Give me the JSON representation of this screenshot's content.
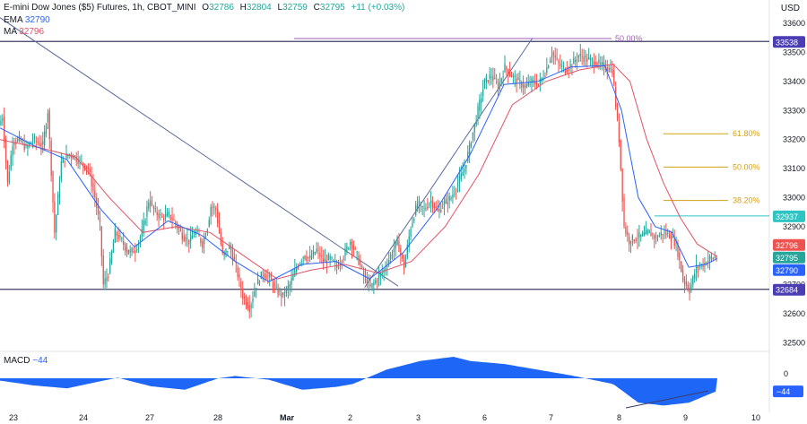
{
  "header": {
    "title": "E-mini Dow Jones ($5) Futures, 1h, CBOT_MINI",
    "o_label": "O",
    "o_value": "32786",
    "h_label": "H",
    "h_value": "32804",
    "l_label": "L",
    "l_value": "32759",
    "c_label": "C",
    "c_value": "32795",
    "change": "+11 (+0.03%)",
    "ema_label": "EMA",
    "ema_value": "32790",
    "ma_label": "MA",
    "ma_value": "32796"
  },
  "colors": {
    "up": "#26a69a",
    "down": "#ef5350",
    "ema": "#2962ff",
    "ma": "#e05365",
    "macd_fill": "#1e66f5",
    "horizontal": "#3d3d63",
    "fib": "#d4a017",
    "fib50_top": "#a15db8",
    "teal_line": "#2ec4c4"
  },
  "chart_data": {
    "type": "line",
    "title": "E-mini Dow Jones ($5) Futures, 1h, CBOT_MINI",
    "y_axis_title": "USD",
    "ylim": [
      32470,
      33650
    ],
    "y_ticks": [
      32500,
      32600,
      32700,
      32800,
      32900,
      33000,
      33100,
      33200,
      33300,
      33400,
      33500,
      33600
    ],
    "x_ticks": [
      "23",
      "24",
      "27",
      "28",
      "Mar",
      "2",
      "3",
      "6",
      "7",
      "8",
      "9",
      "10"
    ],
    "price_path": [
      [
        0,
        33250
      ],
      [
        2,
        33280
      ],
      [
        5,
        33050
      ],
      [
        8,
        33190
      ],
      [
        12,
        33200
      ],
      [
        16,
        33170
      ],
      [
        20,
        33200
      ],
      [
        26,
        33180
      ],
      [
        29,
        33300
      ],
      [
        33,
        32880
      ],
      [
        37,
        33120
      ],
      [
        41,
        33150
      ],
      [
        45,
        33140
      ],
      [
        49,
        33120
      ],
      [
        53,
        33100
      ],
      [
        57,
        33000
      ],
      [
        60,
        32900
      ],
      [
        62,
        32700
      ],
      [
        65,
        32740
      ],
      [
        69,
        32880
      ],
      [
        73,
        32850
      ],
      [
        77,
        32810
      ],
      [
        81,
        32820
      ],
      [
        85,
        32880
      ],
      [
        89,
        32990
      ],
      [
        93,
        32950
      ],
      [
        97,
        32930
      ],
      [
        101,
        32940
      ],
      [
        105,
        32910
      ],
      [
        109,
        32870
      ],
      [
        113,
        32850
      ],
      [
        117,
        32880
      ],
      [
        121,
        32840
      ],
      [
        124,
        32900
      ],
      [
        126,
        32970
      ],
      [
        129,
        32960
      ],
      [
        133,
        32800
      ],
      [
        137,
        32830
      ],
      [
        141,
        32760
      ],
      [
        145,
        32660
      ],
      [
        149,
        32620
      ],
      [
        153,
        32700
      ],
      [
        157,
        32740
      ],
      [
        161,
        32720
      ],
      [
        165,
        32680
      ],
      [
        169,
        32660
      ],
      [
        173,
        32700
      ],
      [
        177,
        32760
      ],
      [
        181,
        32800
      ],
      [
        185,
        32790
      ],
      [
        189,
        32820
      ],
      [
        193,
        32780
      ],
      [
        197,
        32790
      ],
      [
        201,
        32760
      ],
      [
        205,
        32800
      ],
      [
        209,
        32850
      ],
      [
        213,
        32800
      ],
      [
        217,
        32730
      ],
      [
        221,
        32690
      ],
      [
        225,
        32720
      ],
      [
        229,
        32750
      ],
      [
        233,
        32800
      ],
      [
        237,
        32850
      ],
      [
        241,
        32760
      ],
      [
        245,
        32900
      ],
      [
        249,
        32980
      ],
      [
        253,
        32960
      ],
      [
        257,
        32990
      ],
      [
        261,
        32950
      ],
      [
        265,
        32980
      ],
      [
        269,
        33000
      ],
      [
        273,
        33050
      ],
      [
        277,
        33100
      ],
      [
        281,
        33200
      ],
      [
        285,
        33300
      ],
      [
        289,
        33400
      ],
      [
        293,
        33420
      ],
      [
        297,
        33380
      ],
      [
        301,
        33450
      ],
      [
        305,
        33420
      ],
      [
        309,
        33400
      ],
      [
        313,
        33380
      ],
      [
        317,
        33400
      ],
      [
        321,
        33390
      ],
      [
        325,
        33430
      ],
      [
        329,
        33500
      ],
      [
        333,
        33460
      ],
      [
        337,
        33440
      ],
      [
        341,
        33460
      ],
      [
        345,
        33490
      ],
      [
        349,
        33480
      ],
      [
        353,
        33470
      ],
      [
        357,
        33460
      ],
      [
        361,
        33450
      ],
      [
        365,
        33440
      ],
      [
        369,
        33200
      ],
      [
        372,
        32900
      ],
      [
        375,
        32850
      ],
      [
        379,
        32860
      ],
      [
        383,
        32870
      ],
      [
        387,
        32880
      ],
      [
        391,
        32860
      ],
      [
        395,
        32880
      ],
      [
        399,
        32870
      ],
      [
        403,
        32840
      ],
      [
        407,
        32720
      ],
      [
        411,
        32680
      ],
      [
        415,
        32760
      ],
      [
        419,
        32770
      ],
      [
        423,
        32790
      ],
      [
        427,
        32795
      ]
    ],
    "ema_path": [
      [
        0,
        33240
      ],
      [
        20,
        33180
      ],
      [
        40,
        33130
      ],
      [
        60,
        32960
      ],
      [
        80,
        32830
      ],
      [
        100,
        32920
      ],
      [
        120,
        32870
      ],
      [
        140,
        32780
      ],
      [
        160,
        32710
      ],
      [
        180,
        32770
      ],
      [
        200,
        32780
      ],
      [
        220,
        32720
      ],
      [
        240,
        32810
      ],
      [
        260,
        32960
      ],
      [
        280,
        33150
      ],
      [
        300,
        33390
      ],
      [
        320,
        33400
      ],
      [
        340,
        33450
      ],
      [
        360,
        33455
      ],
      [
        370,
        33300
      ],
      [
        380,
        33000
      ],
      [
        390,
        32900
      ],
      [
        400,
        32880
      ],
      [
        410,
        32760
      ],
      [
        420,
        32770
      ],
      [
        427,
        32790
      ]
    ],
    "ma_path": [
      [
        0,
        33200
      ],
      [
        25,
        33170
      ],
      [
        45,
        33140
      ],
      [
        65,
        33000
      ],
      [
        85,
        32880
      ],
      [
        105,
        32900
      ],
      [
        125,
        32880
      ],
      [
        145,
        32800
      ],
      [
        165,
        32720
      ],
      [
        185,
        32750
      ],
      [
        205,
        32770
      ],
      [
        225,
        32740
      ],
      [
        245,
        32780
      ],
      [
        265,
        32900
      ],
      [
        285,
        33080
      ],
      [
        305,
        33320
      ],
      [
        325,
        33400
      ],
      [
        345,
        33440
      ],
      [
        365,
        33460
      ],
      [
        375,
        33400
      ],
      [
        385,
        33200
      ],
      [
        395,
        33050
      ],
      [
        405,
        32930
      ],
      [
        415,
        32840
      ],
      [
        427,
        32796
      ]
    ],
    "macd_path": [
      [
        0,
        -8
      ],
      [
        20,
        -25
      ],
      [
        40,
        -35
      ],
      [
        60,
        -10
      ],
      [
        70,
        2
      ],
      [
        90,
        -28
      ],
      [
        110,
        -40
      ],
      [
        130,
        0
      ],
      [
        140,
        8
      ],
      [
        160,
        -5
      ],
      [
        180,
        -40
      ],
      [
        200,
        -30
      ],
      [
        210,
        -20
      ],
      [
        230,
        30
      ],
      [
        250,
        60
      ],
      [
        270,
        75
      ],
      [
        280,
        60
      ],
      [
        300,
        50
      ],
      [
        320,
        30
      ],
      [
        340,
        10
      ],
      [
        365,
        -20
      ],
      [
        380,
        -85
      ],
      [
        395,
        -95
      ],
      [
        410,
        -85
      ],
      [
        427,
        -44
      ]
    ],
    "horizontal_lines": [
      33538,
      32684
    ],
    "axis_badges": [
      {
        "value": "33538",
        "price": 33538,
        "color": "#4b3db4"
      },
      {
        "value": "32937",
        "price": 32937,
        "color": "#2ec4c4"
      },
      {
        "value": "32796",
        "price": 32796,
        "color": "#ef5350"
      },
      {
        "value": "32795",
        "price": 32795,
        "color": "#26a69a"
      },
      {
        "value": "32790",
        "price": 32790,
        "color": "#2962ff"
      },
      {
        "value": "32684",
        "price": 32684,
        "color": "#4b3db4"
      }
    ],
    "fib_levels": [
      {
        "label": "61.80%",
        "price": 33220
      },
      {
        "label": "50.00%",
        "price": 33105
      },
      {
        "label": "38.20%",
        "price": 32990
      }
    ],
    "fib_top_label": "50.00%",
    "fib_top_price": 33548,
    "trendlines": [
      {
        "from": [
          0,
          33620
        ],
        "to": [
          237,
          32695
        ]
      },
      {
        "from": [
          217,
          32690
        ],
        "to": [
          317,
          33550
        ]
      }
    ],
    "macd_label": "MACD",
    "macd_value": "−44",
    "macd_zero": "0",
    "macd_badge": "−44",
    "macd_range": [
      -110,
      100
    ]
  }
}
